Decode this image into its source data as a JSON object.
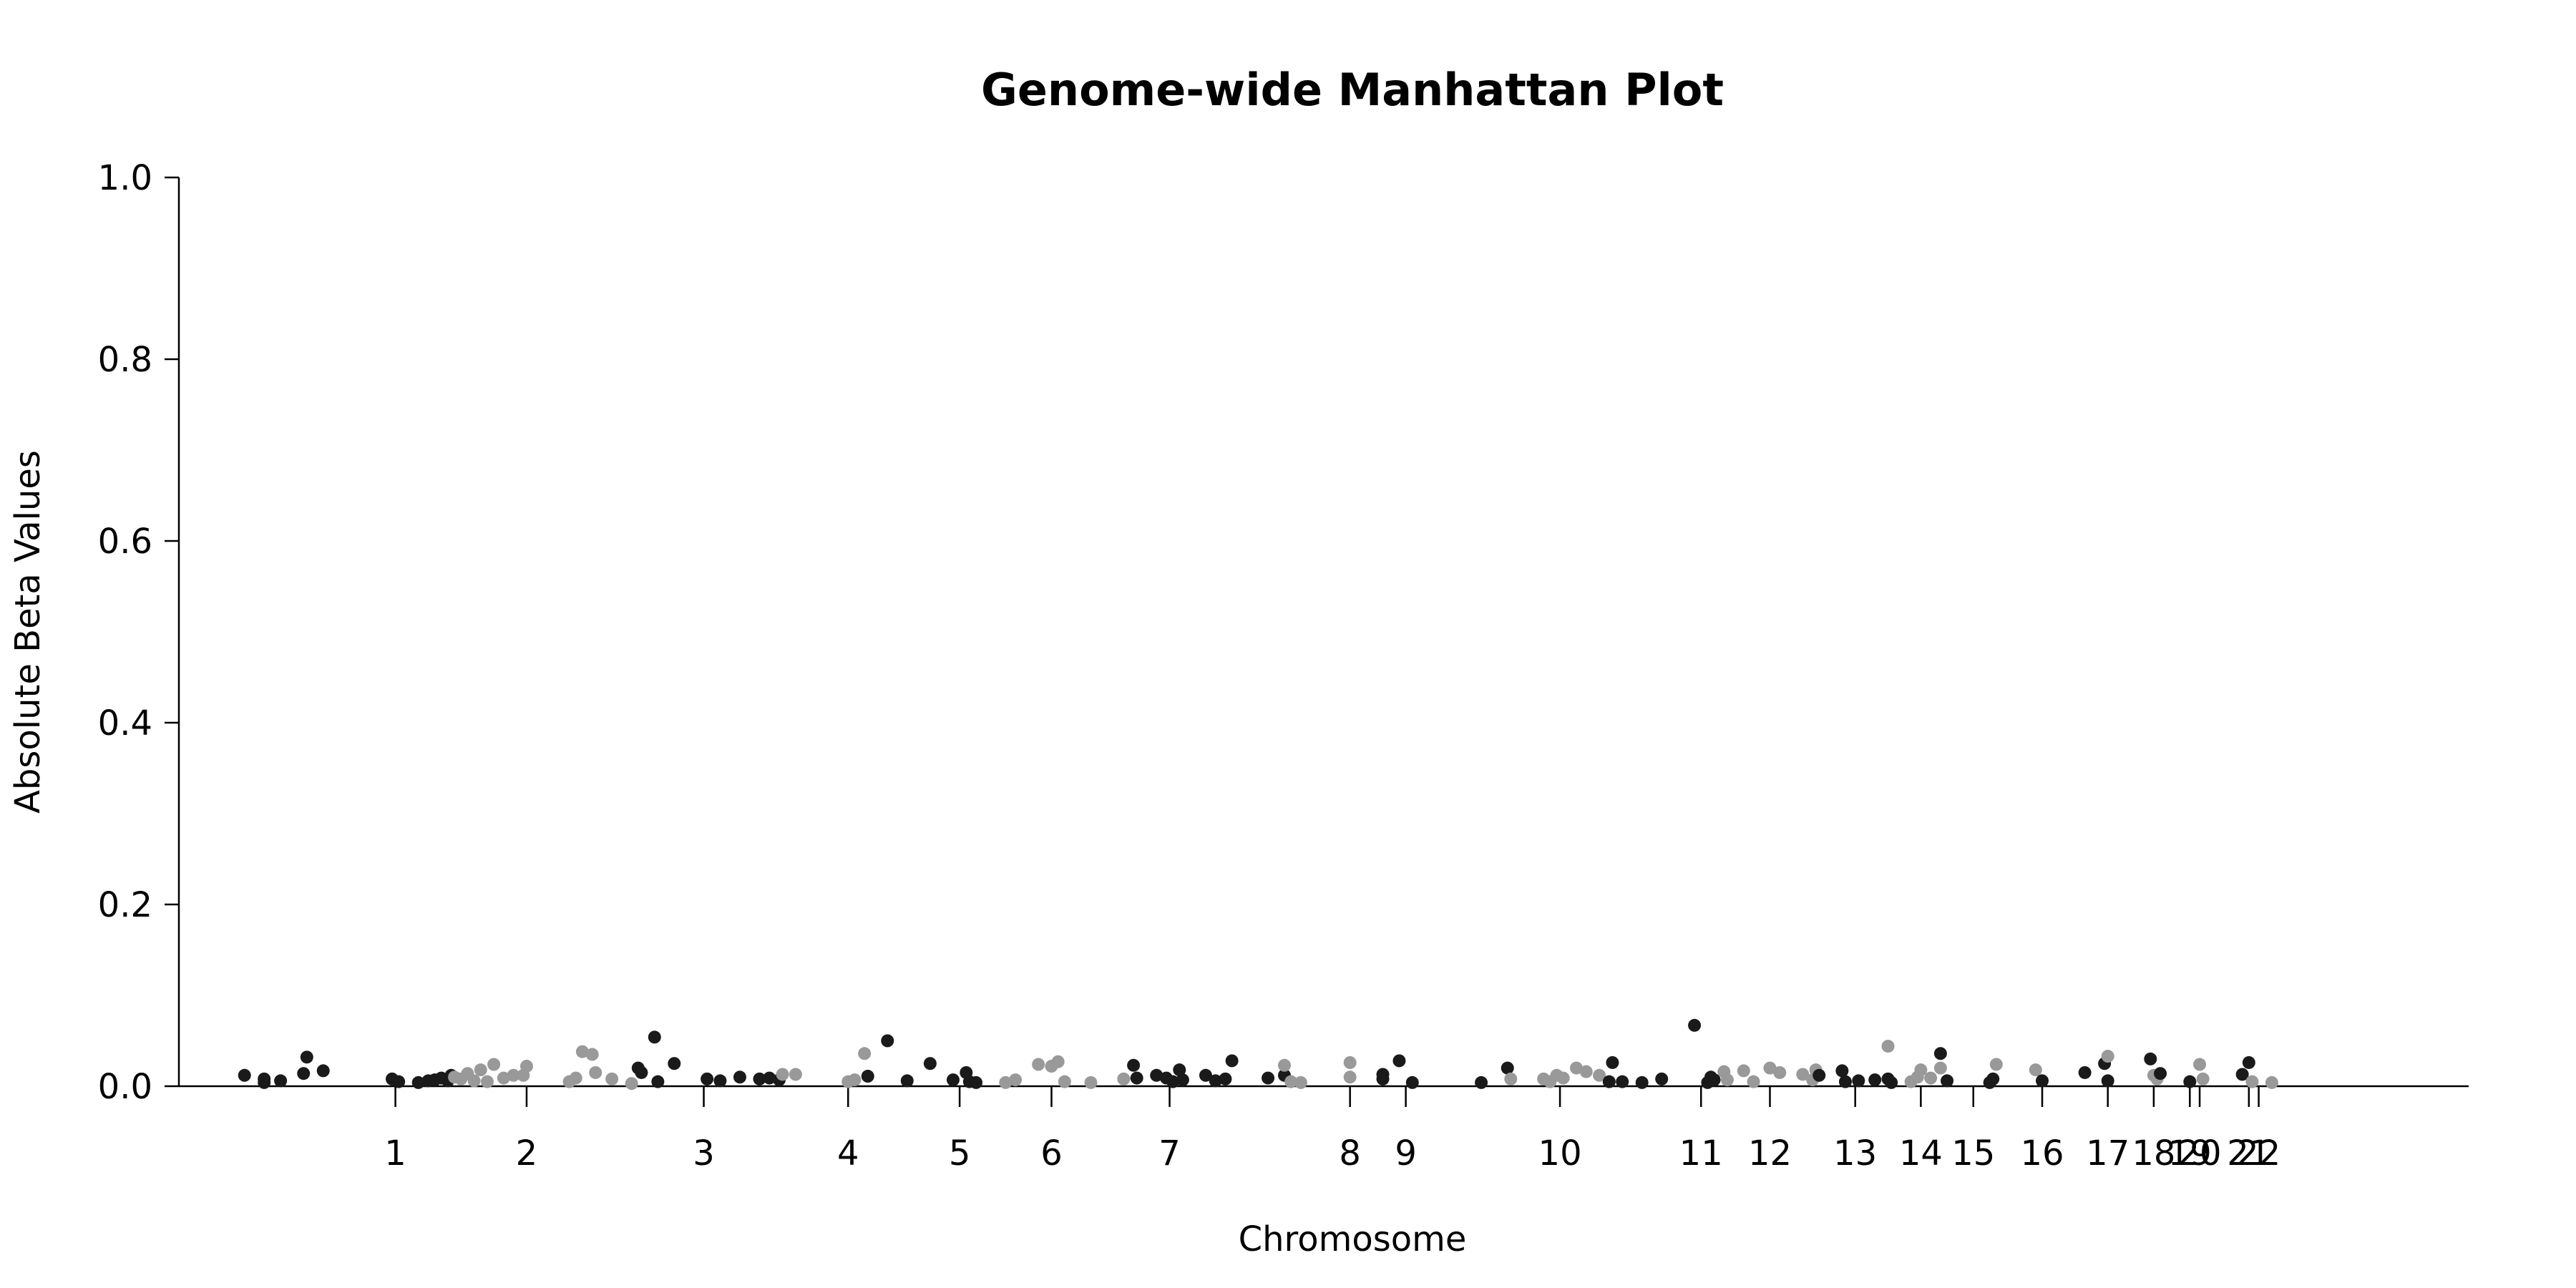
{
  "chart_data": {
    "type": "scatter",
    "title": "Genome-wide Manhattan Plot",
    "xlabel": "Chromosome",
    "ylabel": "Absolute Beta Values",
    "ylim": [
      0,
      1
    ],
    "yticks": [
      "0.0",
      "0.2",
      "0.4",
      "0.6",
      "0.8",
      "1.0"
    ],
    "yticks_values": [
      0,
      0.2,
      0.4,
      0.6,
      0.8,
      1.0
    ],
    "grid": false,
    "legend": "none",
    "colors": {
      "odd": "#1a1a1a",
      "even": "#999999"
    },
    "xlim": [
      -3.3,
      31.6
    ],
    "chromosome_ticks": [
      {
        "label": "1",
        "pos": 0.0
      },
      {
        "label": "2",
        "pos": 2.0
      },
      {
        "label": "3",
        "pos": 4.7
      },
      {
        "label": "4",
        "pos": 6.9
      },
      {
        "label": "5",
        "pos": 8.6
      },
      {
        "label": "6",
        "pos": 10.0
      },
      {
        "label": "7",
        "pos": 11.8
      },
      {
        "label": "8",
        "pos": 14.55
      },
      {
        "label": "9",
        "pos": 15.4
      },
      {
        "label": "10",
        "pos": 17.75
      },
      {
        "label": "11",
        "pos": 19.9
      },
      {
        "label": "12",
        "pos": 20.95
      },
      {
        "label": "13",
        "pos": 22.25
      },
      {
        "label": "14",
        "pos": 23.25
      },
      {
        "label": "15",
        "pos": 24.05
      },
      {
        "label": "16",
        "pos": 25.1
      },
      {
        "label": "17",
        "pos": 26.1
      },
      {
        "label": "18",
        "pos": 26.8
      },
      {
        "label": "19",
        "pos": 27.35
      },
      {
        "label": "20",
        "pos": 27.5
      },
      {
        "label": "21",
        "pos": 28.25
      },
      {
        "label": "22",
        "pos": 28.4
      }
    ],
    "points": [
      {
        "x": -2.3,
        "y": 0.012,
        "c": "odd"
      },
      {
        "x": -2.0,
        "y": 0.008,
        "c": "odd"
      },
      {
        "x": -2.0,
        "y": 0.004,
        "c": "odd"
      },
      {
        "x": -1.75,
        "y": 0.006,
        "c": "odd"
      },
      {
        "x": -1.4,
        "y": 0.014,
        "c": "odd"
      },
      {
        "x": -1.35,
        "y": 0.032,
        "c": "odd"
      },
      {
        "x": -1.1,
        "y": 0.017,
        "c": "odd"
      },
      {
        "x": -0.05,
        "y": 0.008,
        "c": "odd"
      },
      {
        "x": 0.05,
        "y": 0.005,
        "c": "odd"
      },
      {
        "x": 0.35,
        "y": 0.004,
        "c": "odd"
      },
      {
        "x": 0.5,
        "y": 0.006,
        "c": "odd"
      },
      {
        "x": 0.6,
        "y": 0.007,
        "c": "odd"
      },
      {
        "x": 0.7,
        "y": 0.009,
        "c": "odd"
      },
      {
        "x": 0.8,
        "y": 0.006,
        "c": "odd"
      },
      {
        "x": 0.85,
        "y": 0.012,
        "c": "odd"
      },
      {
        "x": 0.9,
        "y": 0.01,
        "c": "even"
      },
      {
        "x": 1.0,
        "y": 0.008,
        "c": "even"
      },
      {
        "x": 1.1,
        "y": 0.014,
        "c": "even"
      },
      {
        "x": 1.2,
        "y": 0.006,
        "c": "even"
      },
      {
        "x": 1.3,
        "y": 0.018,
        "c": "even"
      },
      {
        "x": 1.4,
        "y": 0.005,
        "c": "even"
      },
      {
        "x": 1.5,
        "y": 0.024,
        "c": "even"
      },
      {
        "x": 1.65,
        "y": 0.009,
        "c": "even"
      },
      {
        "x": 1.8,
        "y": 0.012,
        "c": "even"
      },
      {
        "x": 1.95,
        "y": 0.012,
        "c": "even"
      },
      {
        "x": 2.0,
        "y": 0.022,
        "c": "even"
      },
      {
        "x": 2.65,
        "y": 0.005,
        "c": "even"
      },
      {
        "x": 2.75,
        "y": 0.009,
        "c": "even"
      },
      {
        "x": 2.85,
        "y": 0.038,
        "c": "even"
      },
      {
        "x": 3.0,
        "y": 0.035,
        "c": "even"
      },
      {
        "x": 3.05,
        "y": 0.015,
        "c": "even"
      },
      {
        "x": 3.3,
        "y": 0.008,
        "c": "even"
      },
      {
        "x": 3.6,
        "y": 0.003,
        "c": "even"
      },
      {
        "x": 3.7,
        "y": 0.02,
        "c": "odd"
      },
      {
        "x": 3.75,
        "y": 0.015,
        "c": "odd"
      },
      {
        "x": 3.95,
        "y": 0.054,
        "c": "odd"
      },
      {
        "x": 4.0,
        "y": 0.005,
        "c": "odd"
      },
      {
        "x": 4.25,
        "y": 0.025,
        "c": "odd"
      },
      {
        "x": 4.75,
        "y": 0.008,
        "c": "odd"
      },
      {
        "x": 4.95,
        "y": 0.006,
        "c": "odd"
      },
      {
        "x": 5.25,
        "y": 0.01,
        "c": "odd"
      },
      {
        "x": 5.55,
        "y": 0.008,
        "c": "odd"
      },
      {
        "x": 5.7,
        "y": 0.009,
        "c": "odd"
      },
      {
        "x": 5.85,
        "y": 0.007,
        "c": "odd"
      },
      {
        "x": 5.9,
        "y": 0.013,
        "c": "even"
      },
      {
        "x": 6.1,
        "y": 0.013,
        "c": "even"
      },
      {
        "x": 6.9,
        "y": 0.005,
        "c": "even"
      },
      {
        "x": 7.0,
        "y": 0.007,
        "c": "even"
      },
      {
        "x": 7.15,
        "y": 0.036,
        "c": "even"
      },
      {
        "x": 7.2,
        "y": 0.011,
        "c": "odd"
      },
      {
        "x": 7.5,
        "y": 0.05,
        "c": "odd"
      },
      {
        "x": 7.8,
        "y": 0.006,
        "c": "odd"
      },
      {
        "x": 8.15,
        "y": 0.025,
        "c": "odd"
      },
      {
        "x": 8.5,
        "y": 0.007,
        "c": "odd"
      },
      {
        "x": 8.7,
        "y": 0.015,
        "c": "odd"
      },
      {
        "x": 8.75,
        "y": 0.005,
        "c": "odd"
      },
      {
        "x": 8.85,
        "y": 0.004,
        "c": "odd"
      },
      {
        "x": 9.3,
        "y": 0.004,
        "c": "even"
      },
      {
        "x": 9.45,
        "y": 0.007,
        "c": "even"
      },
      {
        "x": 9.8,
        "y": 0.024,
        "c": "even"
      },
      {
        "x": 10.0,
        "y": 0.022,
        "c": "even"
      },
      {
        "x": 10.1,
        "y": 0.027,
        "c": "even"
      },
      {
        "x": 10.2,
        "y": 0.005,
        "c": "even"
      },
      {
        "x": 10.6,
        "y": 0.004,
        "c": "even"
      },
      {
        "x": 11.1,
        "y": 0.008,
        "c": "even"
      },
      {
        "x": 11.25,
        "y": 0.023,
        "c": "odd"
      },
      {
        "x": 11.3,
        "y": 0.009,
        "c": "odd"
      },
      {
        "x": 11.6,
        "y": 0.012,
        "c": "odd"
      },
      {
        "x": 11.75,
        "y": 0.009,
        "c": "odd"
      },
      {
        "x": 11.85,
        "y": 0.005,
        "c": "odd"
      },
      {
        "x": 11.95,
        "y": 0.018,
        "c": "odd"
      },
      {
        "x": 12.0,
        "y": 0.007,
        "c": "odd"
      },
      {
        "x": 12.35,
        "y": 0.012,
        "c": "odd"
      },
      {
        "x": 12.5,
        "y": 0.006,
        "c": "odd"
      },
      {
        "x": 12.65,
        "y": 0.008,
        "c": "odd"
      },
      {
        "x": 12.75,
        "y": 0.028,
        "c": "odd"
      },
      {
        "x": 13.3,
        "y": 0.009,
        "c": "odd"
      },
      {
        "x": 13.55,
        "y": 0.012,
        "c": "odd"
      },
      {
        "x": 13.55,
        "y": 0.023,
        "c": "even"
      },
      {
        "x": 13.65,
        "y": 0.005,
        "c": "even"
      },
      {
        "x": 13.8,
        "y": 0.004,
        "c": "even"
      },
      {
        "x": 14.55,
        "y": 0.026,
        "c": "even"
      },
      {
        "x": 14.55,
        "y": 0.01,
        "c": "even"
      },
      {
        "x": 15.05,
        "y": 0.013,
        "c": "odd"
      },
      {
        "x": 15.05,
        "y": 0.008,
        "c": "odd"
      },
      {
        "x": 15.3,
        "y": 0.028,
        "c": "odd"
      },
      {
        "x": 15.5,
        "y": 0.004,
        "c": "odd"
      },
      {
        "x": 16.55,
        "y": 0.004,
        "c": "odd"
      },
      {
        "x": 16.95,
        "y": 0.02,
        "c": "odd"
      },
      {
        "x": 17.0,
        "y": 0.008,
        "c": "even"
      },
      {
        "x": 17.5,
        "y": 0.008,
        "c": "even"
      },
      {
        "x": 17.6,
        "y": 0.005,
        "c": "even"
      },
      {
        "x": 17.7,
        "y": 0.012,
        "c": "even"
      },
      {
        "x": 17.8,
        "y": 0.009,
        "c": "even"
      },
      {
        "x": 18.0,
        "y": 0.02,
        "c": "even"
      },
      {
        "x": 18.15,
        "y": 0.016,
        "c": "even"
      },
      {
        "x": 18.35,
        "y": 0.012,
        "c": "even"
      },
      {
        "x": 18.5,
        "y": 0.005,
        "c": "odd"
      },
      {
        "x": 18.55,
        "y": 0.026,
        "c": "odd"
      },
      {
        "x": 18.7,
        "y": 0.005,
        "c": "odd"
      },
      {
        "x": 19.0,
        "y": 0.004,
        "c": "odd"
      },
      {
        "x": 19.3,
        "y": 0.008,
        "c": "odd"
      },
      {
        "x": 19.8,
        "y": 0.067,
        "c": "odd"
      },
      {
        "x": 20.0,
        "y": 0.004,
        "c": "odd"
      },
      {
        "x": 20.05,
        "y": 0.01,
        "c": "odd"
      },
      {
        "x": 20.1,
        "y": 0.007,
        "c": "odd"
      },
      {
        "x": 20.25,
        "y": 0.016,
        "c": "even"
      },
      {
        "x": 20.3,
        "y": 0.007,
        "c": "even"
      },
      {
        "x": 20.55,
        "y": 0.017,
        "c": "even"
      },
      {
        "x": 20.7,
        "y": 0.005,
        "c": "even"
      },
      {
        "x": 20.95,
        "y": 0.02,
        "c": "even"
      },
      {
        "x": 21.1,
        "y": 0.015,
        "c": "even"
      },
      {
        "x": 21.45,
        "y": 0.013,
        "c": "even"
      },
      {
        "x": 21.65,
        "y": 0.018,
        "c": "even"
      },
      {
        "x": 21.6,
        "y": 0.007,
        "c": "even"
      },
      {
        "x": 21.7,
        "y": 0.012,
        "c": "odd"
      },
      {
        "x": 22.05,
        "y": 0.017,
        "c": "odd"
      },
      {
        "x": 22.1,
        "y": 0.005,
        "c": "odd"
      },
      {
        "x": 22.3,
        "y": 0.006,
        "c": "odd"
      },
      {
        "x": 22.55,
        "y": 0.007,
        "c": "odd"
      },
      {
        "x": 22.75,
        "y": 0.008,
        "c": "odd"
      },
      {
        "x": 22.8,
        "y": 0.004,
        "c": "odd"
      },
      {
        "x": 22.75,
        "y": 0.044,
        "c": "even"
      },
      {
        "x": 23.1,
        "y": 0.005,
        "c": "even"
      },
      {
        "x": 23.2,
        "y": 0.01,
        "c": "even"
      },
      {
        "x": 23.25,
        "y": 0.018,
        "c": "even"
      },
      {
        "x": 23.4,
        "y": 0.009,
        "c": "even"
      },
      {
        "x": 23.55,
        "y": 0.02,
        "c": "even"
      },
      {
        "x": 23.55,
        "y": 0.036,
        "c": "odd"
      },
      {
        "x": 23.65,
        "y": 0.006,
        "c": "odd"
      },
      {
        "x": 24.3,
        "y": 0.004,
        "c": "odd"
      },
      {
        "x": 24.35,
        "y": 0.008,
        "c": "odd"
      },
      {
        "x": 24.4,
        "y": 0.024,
        "c": "even"
      },
      {
        "x": 25.0,
        "y": 0.018,
        "c": "even"
      },
      {
        "x": 25.1,
        "y": 0.006,
        "c": "odd"
      },
      {
        "x": 25.75,
        "y": 0.015,
        "c": "odd"
      },
      {
        "x": 26.05,
        "y": 0.025,
        "c": "odd"
      },
      {
        "x": 26.1,
        "y": 0.006,
        "c": "odd"
      },
      {
        "x": 26.1,
        "y": 0.033,
        "c": "even"
      },
      {
        "x": 26.75,
        "y": 0.03,
        "c": "odd"
      },
      {
        "x": 26.8,
        "y": 0.012,
        "c": "even"
      },
      {
        "x": 26.85,
        "y": 0.008,
        "c": "even"
      },
      {
        "x": 26.9,
        "y": 0.014,
        "c": "odd"
      },
      {
        "x": 27.35,
        "y": 0.005,
        "c": "odd"
      },
      {
        "x": 27.5,
        "y": 0.024,
        "c": "even"
      },
      {
        "x": 27.55,
        "y": 0.008,
        "c": "even"
      },
      {
        "x": 28.15,
        "y": 0.013,
        "c": "odd"
      },
      {
        "x": 28.25,
        "y": 0.026,
        "c": "odd"
      },
      {
        "x": 28.3,
        "y": 0.005,
        "c": "even"
      },
      {
        "x": 28.6,
        "y": 0.004,
        "c": "even"
      }
    ]
  }
}
